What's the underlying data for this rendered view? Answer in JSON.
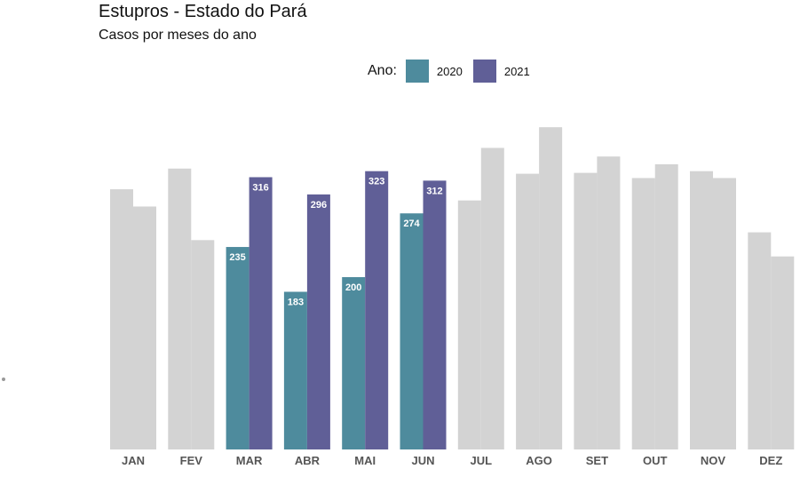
{
  "chart_data": {
    "type": "bar",
    "title": "Estupros - Estado do Pará",
    "subtitle": "Casos por meses do ano",
    "legend": {
      "title": "Ano:",
      "position": "top"
    },
    "categories": [
      "JAN",
      "FEV",
      "MAR",
      "ABR",
      "MAI",
      "JUN",
      "JUL",
      "AGO",
      "SET",
      "OUT",
      "NOV",
      "DEZ"
    ],
    "highlight_range": [
      "MAR",
      "JUN"
    ],
    "ylim": [
      0,
      410
    ],
    "series": [
      {
        "name": "2020",
        "color": "#4e8b9d",
        "values": [
          302,
          326,
          235,
          183,
          200,
          274,
          289,
          320,
          321,
          315,
          323,
          252
        ]
      },
      {
        "name": "2021",
        "color": "#605f97",
        "values": [
          282,
          243,
          316,
          296,
          323,
          312,
          350,
          374,
          340,
          331,
          315,
          224
        ]
      }
    ],
    "labeled_categories": [
      "MAR",
      "ABR",
      "MAI",
      "JUN"
    ],
    "muted_color": "#d3d3d3",
    "label_color": "#ffffff",
    "tick_label_color": "#555555"
  }
}
